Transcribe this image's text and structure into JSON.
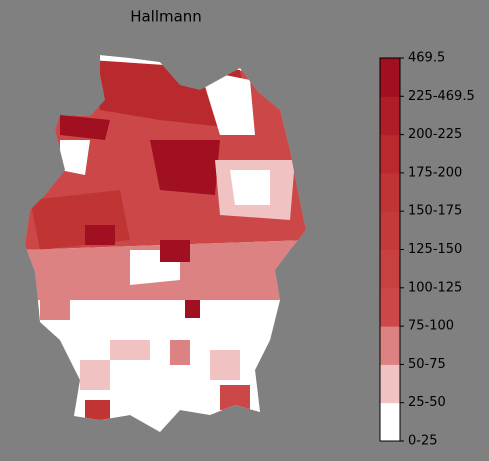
{
  "title": "Hallmann",
  "legend": {
    "ticks": [
      "0-25",
      "25-50",
      "50-75",
      "75-100",
      "100-125",
      "125-150",
      "150-175",
      "175-200",
      "200-225",
      "225-469.5",
      "469.5"
    ],
    "colors": [
      "#ffffff",
      "#f0c2c2",
      "#dc8282",
      "#cc4848",
      "#c84040",
      "#c43a3a",
      "#c03434",
      "#b82a2e",
      "#ae1e28",
      "#a01020"
    ]
  }
}
